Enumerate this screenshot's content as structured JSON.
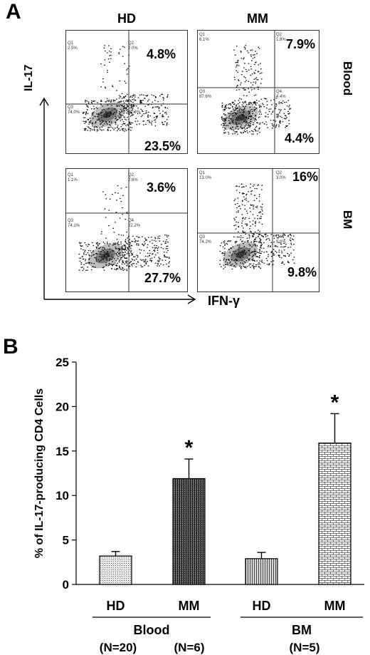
{
  "panel_a": {
    "letter": "A",
    "col_headers": [
      "HD",
      "MM"
    ],
    "row_headers": [
      "Blood",
      "BM"
    ],
    "y_axis_label": "IL-17",
    "x_axis_label": "IFN-γ",
    "plots": [
      {
        "q_upper": "4.8%",
        "q_lower": "23.5%",
        "q1": "Q1",
        "q1v": "2.5%",
        "q2": "Q2",
        "q2v": "2.0%",
        "q3": "Q3",
        "q3v": "74.0%",
        "q4": "Q4",
        "q4v": "21.3%"
      },
      {
        "q_upper": "7.9%",
        "q_lower": "4.4%",
        "q1": "Q1",
        "q1v": "6.1%",
        "q2": "Q2",
        "q2v": "1.8%",
        "q3": "Q3",
        "q3v": "87.6%",
        "q4": "Q4",
        "q4v": "4.4%"
      },
      {
        "q_upper": "3.6%",
        "q_lower": "27.7%",
        "q1": "Q1",
        "q1v": "1.1%",
        "q2": "Q2",
        "q2v": "2.6%",
        "q3": "Q3",
        "q3v": "74.1%",
        "q4": "Q4",
        "q4v": "22.2%"
      },
      {
        "q_upper": "16%",
        "q_lower": "9.8%",
        "q1": "Q1",
        "q1v": "13.0%",
        "q2": "Q2",
        "q2v": "3.0%",
        "q3": "Q3",
        "q3v": "74.2%",
        "q4": "Q4",
        "q4v": "9.8%"
      }
    ]
  },
  "panel_b": {
    "letter": "B"
  },
  "chart_data": {
    "type": "bar",
    "title": "",
    "xlabel": "",
    "ylabel": "% of IL-17-producing CD4 Cells",
    "ylim": [
      0,
      25
    ],
    "yticks": [
      "0",
      "5",
      "10",
      "15",
      "20",
      "25"
    ],
    "categories": [
      "HD",
      "MM",
      "HD",
      "MM"
    ],
    "values": [
      3.2,
      11.9,
      2.9,
      15.9
    ],
    "errors": [
      0.5,
      2.2,
      0.7,
      3.3
    ],
    "significance": [
      "",
      "*",
      "",
      "*"
    ],
    "fills": [
      "light-dots",
      "dark-vertical",
      "vertical-stripes",
      "brick"
    ],
    "groups": [
      {
        "label": "Blood",
        "n_labels": [
          "(N=20)",
          "(N=6)"
        ]
      },
      {
        "label": "BM",
        "n_labels": [
          "(N=5)"
        ]
      }
    ]
  }
}
